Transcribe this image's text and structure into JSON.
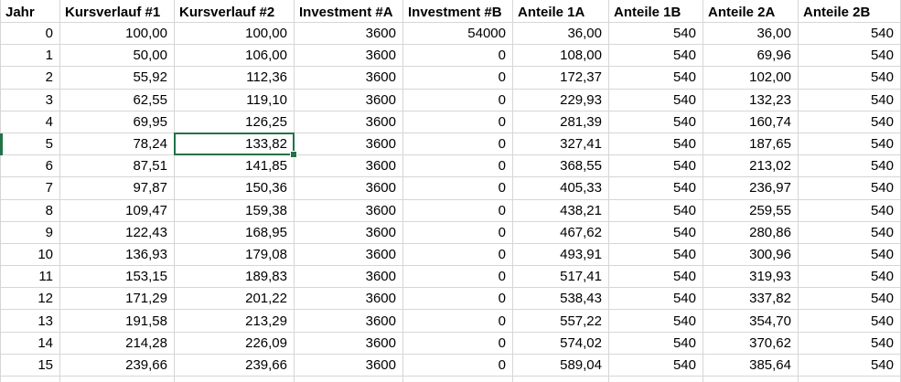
{
  "sheet": {
    "columns": [
      {
        "header": "Jahr",
        "values": [
          "0",
          "1",
          "2",
          "3",
          "4",
          "5",
          "6",
          "7",
          "8",
          "9",
          "10",
          "11",
          "12",
          "13",
          "14",
          "15"
        ]
      },
      {
        "header": "Kursverlauf #1",
        "values": [
          "100,00",
          "50,00",
          "55,92",
          "62,55",
          "69,95",
          "78,24",
          "87,51",
          "97,87",
          "109,47",
          "122,43",
          "136,93",
          "153,15",
          "171,29",
          "191,58",
          "214,28",
          "239,66"
        ]
      },
      {
        "header": "Kursverlauf #2",
        "values": [
          "100,00",
          "106,00",
          "112,36",
          "119,10",
          "126,25",
          "133,82",
          "141,85",
          "150,36",
          "159,38",
          "168,95",
          "179,08",
          "189,83",
          "201,22",
          "213,29",
          "226,09",
          "239,66"
        ]
      },
      {
        "header": "Investment #A",
        "values": [
          "3600",
          "3600",
          "3600",
          "3600",
          "3600",
          "3600",
          "3600",
          "3600",
          "3600",
          "3600",
          "3600",
          "3600",
          "3600",
          "3600",
          "3600",
          "3600"
        ]
      },
      {
        "header": "Investment #B",
        "values": [
          "54000",
          "0",
          "0",
          "0",
          "0",
          "0",
          "0",
          "0",
          "0",
          "0",
          "0",
          "0",
          "0",
          "0",
          "0",
          "0"
        ]
      },
      {
        "header": "Anteile 1A",
        "values": [
          "36,00",
          "108,00",
          "172,37",
          "229,93",
          "281,39",
          "327,41",
          "368,55",
          "405,33",
          "438,21",
          "467,62",
          "493,91",
          "517,41",
          "538,43",
          "557,22",
          "574,02",
          "589,04"
        ]
      },
      {
        "header": "Anteile 1B",
        "values": [
          "540",
          "540",
          "540",
          "540",
          "540",
          "540",
          "540",
          "540",
          "540",
          "540",
          "540",
          "540",
          "540",
          "540",
          "540",
          "540"
        ]
      },
      {
        "header": "Anteile 2A",
        "values": [
          "36,00",
          "69,96",
          "102,00",
          "132,23",
          "160,74",
          "187,65",
          "213,02",
          "236,97",
          "259,55",
          "280,86",
          "300,96",
          "319,93",
          "337,82",
          "354,70",
          "370,62",
          "385,64"
        ]
      },
      {
        "header": "Anteile 2B",
        "values": [
          "540",
          "540",
          "540",
          "540",
          "540",
          "540",
          "540",
          "540",
          "540",
          "540",
          "540",
          "540",
          "540",
          "540",
          "540",
          "540"
        ]
      }
    ],
    "selected_cell": {
      "column": "Kursverlauf #2",
      "column_index": 2,
      "row_index": 5,
      "value": "133,82"
    },
    "colors": {
      "selection": "#217346",
      "gridline": "#d6d6d6",
      "text": "#000000",
      "background": "#ffffff"
    }
  }
}
